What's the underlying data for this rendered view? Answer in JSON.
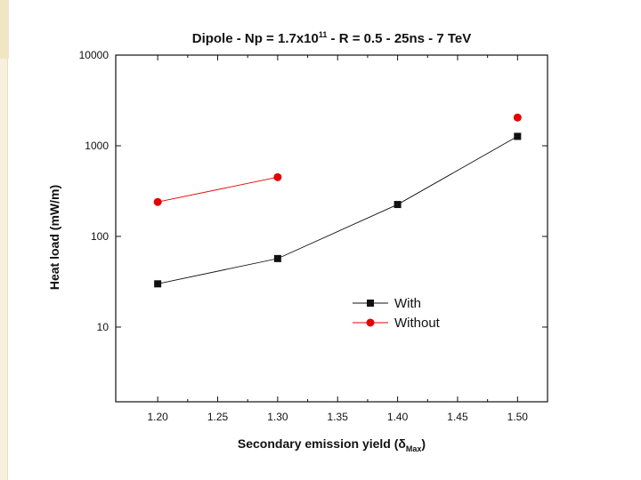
{
  "chart_data": {
    "type": "line",
    "title_main": "Dipole - Np = 1.7x10",
    "title_exp": "11",
    "title_rest": " - R = 0.5 - 25ns - 7 TeV",
    "xlabel_main": "Secondary emission yield (",
    "xlabel_symbol": "δ",
    "xlabel_sub": "Max",
    "xlabel_close": ")",
    "ylabel": "Heat load (mW/m)",
    "xlim": [
      1.165,
      1.525
    ],
    "ylim": [
      1.5,
      10000
    ],
    "yscale": "log",
    "x_ticks": [
      "1.20",
      "1.25",
      "1.30",
      "1.35",
      "1.40",
      "1.45",
      "1.50"
    ],
    "y_ticks": [
      "10",
      "100",
      "1000",
      "10000"
    ],
    "legend": [
      "With",
      "Without"
    ],
    "series": [
      {
        "name": "With",
        "color": "#111111",
        "marker": "square",
        "x": [
          1.2,
          1.3,
          1.4,
          1.5
        ],
        "y": [
          30,
          57,
          225,
          1270
        ]
      },
      {
        "name": "Without",
        "color": "#e60000",
        "marker": "circle",
        "x": [
          1.2,
          1.3,
          1.5
        ],
        "y": [
          240,
          450,
          2050
        ],
        "line_x": [
          1.2,
          1.3
        ]
      }
    ]
  }
}
